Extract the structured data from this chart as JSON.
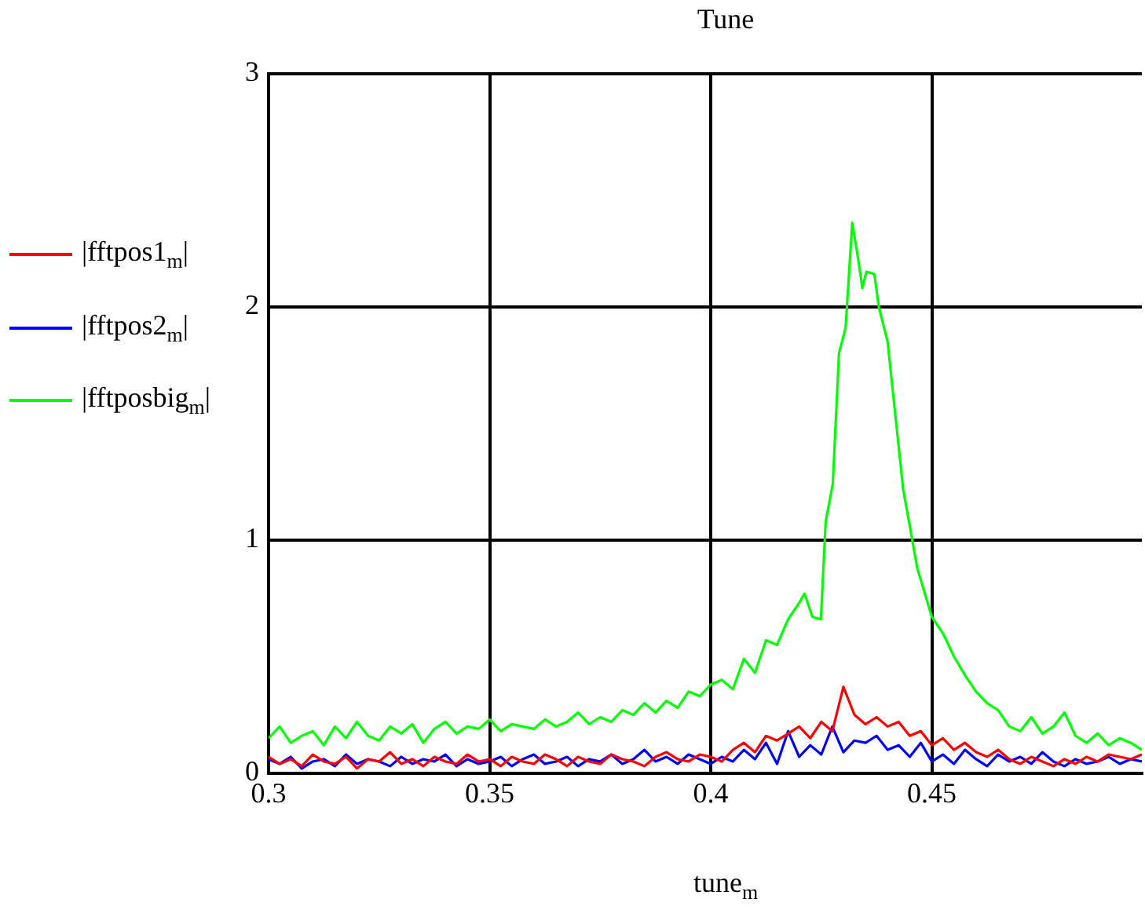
{
  "chart_data": {
    "type": "line",
    "title": "Tune",
    "xlabel": "tune$_{m}$",
    "legend": "left",
    "grid": true,
    "marker": "none",
    "line_style": "solid",
    "xlim": [
      0.3,
      0.4975
    ],
    "xticks": [
      0.3,
      0.35,
      0.4,
      0.45
    ],
    "ylim": [
      0,
      3
    ],
    "yticks": [
      0,
      1,
      2,
      3
    ],
    "x": [
      0.3,
      0.3025,
      0.305,
      0.3075,
      0.31,
      0.3125,
      0.315,
      0.3175,
      0.32,
      0.3225,
      0.325,
      0.3275,
      0.33,
      0.3325,
      0.335,
      0.3375,
      0.34,
      0.3425,
      0.345,
      0.3475,
      0.35,
      0.3525,
      0.355,
      0.3575,
      0.36,
      0.3625,
      0.365,
      0.3675,
      0.37,
      0.3725,
      0.375,
      0.3775,
      0.38,
      0.3825,
      0.385,
      0.3875,
      0.39,
      0.3925,
      0.395,
      0.3975,
      0.4,
      0.4025,
      0.405,
      0.4075,
      0.41,
      0.4125,
      0.415,
      0.4175,
      0.42,
      0.4225,
      0.425,
      0.4275,
      0.43,
      0.4325,
      0.435,
      0.4375,
      0.44,
      0.4425,
      0.445,
      0.4475,
      0.45,
      0.4525,
      0.455,
      0.4575,
      0.46,
      0.4625,
      0.465,
      0.4675,
      0.47,
      0.4725,
      0.475,
      0.4775,
      0.48,
      0.4825,
      0.485,
      0.4875,
      0.49,
      0.4925,
      0.495,
      0.4975
    ],
    "series": [
      {
        "name": "|fftpos1$_{m}$|",
        "color": "#ff0000",
        "values": [
          0.07,
          0.04,
          0.06,
          0.03,
          0.08,
          0.05,
          0.04,
          0.07,
          0.02,
          0.06,
          0.05,
          0.09,
          0.04,
          0.06,
          0.03,
          0.07,
          0.05,
          0.04,
          0.08,
          0.05,
          0.06,
          0.03,
          0.07,
          0.05,
          0.04,
          0.08,
          0.06,
          0.03,
          0.07,
          0.05,
          0.04,
          0.08,
          0.06,
          0.05,
          0.03,
          0.07,
          0.09,
          0.06,
          0.05,
          0.08,
          0.07,
          0.05,
          0.1,
          0.13,
          0.09,
          0.16,
          0.14,
          0.17,
          0.2,
          0.15,
          0.22,
          0.18,
          0.37,
          0.25,
          0.21,
          0.24,
          0.2,
          0.22,
          0.16,
          0.18,
          0.12,
          0.15,
          0.1,
          0.13,
          0.09,
          0.07,
          0.1,
          0.06,
          0.04,
          0.07,
          0.05,
          0.03,
          0.06,
          0.04,
          0.07,
          0.05,
          0.08,
          0.07,
          0.06,
          0.08
        ]
      },
      {
        "name": "|fftpos2$_{m}$|",
        "color": "#0000ff",
        "values": [
          0.06,
          0.04,
          0.07,
          0.02,
          0.05,
          0.06,
          0.03,
          0.08,
          0.04,
          0.06,
          0.05,
          0.03,
          0.07,
          0.04,
          0.06,
          0.05,
          0.08,
          0.03,
          0.06,
          0.04,
          0.05,
          0.07,
          0.03,
          0.06,
          0.08,
          0.04,
          0.05,
          0.07,
          0.03,
          0.06,
          0.05,
          0.08,
          0.04,
          0.06,
          0.1,
          0.05,
          0.07,
          0.04,
          0.08,
          0.06,
          0.04,
          0.07,
          0.05,
          0.1,
          0.06,
          0.13,
          0.04,
          0.18,
          0.07,
          0.12,
          0.08,
          0.2,
          0.09,
          0.14,
          0.13,
          0.16,
          0.1,
          0.12,
          0.07,
          0.13,
          0.05,
          0.08,
          0.04,
          0.1,
          0.06,
          0.03,
          0.08,
          0.05,
          0.07,
          0.04,
          0.09,
          0.05,
          0.03,
          0.06,
          0.04,
          0.05,
          0.07,
          0.04,
          0.06,
          0.05
        ]
      },
      {
        "name": "|fftposbig$_{m}$|",
        "color": "#00ff00",
        "x": [
          0.3,
          0.3025,
          0.305,
          0.3075,
          0.31,
          0.3125,
          0.315,
          0.3175,
          0.32,
          0.3225,
          0.325,
          0.3275,
          0.33,
          0.3325,
          0.335,
          0.3375,
          0.34,
          0.3425,
          0.345,
          0.3475,
          0.35,
          0.3525,
          0.355,
          0.3575,
          0.36,
          0.3625,
          0.365,
          0.3675,
          0.37,
          0.3725,
          0.375,
          0.3775,
          0.38,
          0.3825,
          0.385,
          0.3875,
          0.39,
          0.3925,
          0.395,
          0.3975,
          0.4,
          0.4025,
          0.405,
          0.4075,
          0.41,
          0.4125,
          0.415,
          0.4175,
          0.42,
          0.4212,
          0.423,
          0.4249,
          0.426,
          0.4276,
          0.429,
          0.4305,
          0.432,
          0.4333,
          0.4343,
          0.4352,
          0.437,
          0.438,
          0.44,
          0.4435,
          0.4467,
          0.45,
          0.4525,
          0.455,
          0.4575,
          0.46,
          0.4625,
          0.465,
          0.4675,
          0.47,
          0.4725,
          0.475,
          0.4775,
          0.48,
          0.4825,
          0.485,
          0.4875,
          0.49,
          0.4925,
          0.495,
          0.4975
        ],
        "values": [
          0.15,
          0.2,
          0.13,
          0.16,
          0.18,
          0.12,
          0.2,
          0.15,
          0.22,
          0.16,
          0.14,
          0.2,
          0.17,
          0.21,
          0.13,
          0.19,
          0.22,
          0.17,
          0.2,
          0.19,
          0.23,
          0.18,
          0.21,
          0.2,
          0.19,
          0.23,
          0.2,
          0.22,
          0.26,
          0.21,
          0.24,
          0.22,
          0.27,
          0.25,
          0.3,
          0.26,
          0.31,
          0.28,
          0.35,
          0.33,
          0.38,
          0.4,
          0.36,
          0.49,
          0.43,
          0.57,
          0.55,
          0.66,
          0.73,
          0.77,
          0.67,
          0.66,
          1.08,
          1.24,
          1.8,
          1.91,
          2.36,
          2.21,
          2.08,
          2.15,
          2.14,
          2.0,
          1.85,
          1.22,
          0.88,
          0.67,
          0.6,
          0.5,
          0.42,
          0.35,
          0.3,
          0.27,
          0.2,
          0.18,
          0.24,
          0.17,
          0.2,
          0.26,
          0.16,
          0.13,
          0.17,
          0.12,
          0.15,
          0.13,
          0.1
        ]
      }
    ]
  }
}
